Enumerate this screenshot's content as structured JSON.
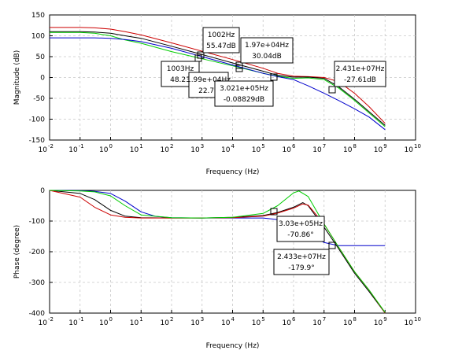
{
  "chart_data": [
    {
      "type": "line",
      "xlabel": "Frequency (Hz)",
      "ylabel": "Magnitude (dB)",
      "xscale": "log",
      "xlim": [
        0.01,
        10000000000
      ],
      "ylim": [
        -150,
        150
      ],
      "xticks": [
        "-2",
        "-1",
        "0",
        "1",
        "2",
        "3",
        "4",
        "5",
        "6",
        "7",
        "8",
        "9",
        "10"
      ],
      "xtick_base": "10",
      "yticks": [
        150,
        100,
        50,
        0,
        -50,
        -100,
        -150
      ],
      "grid": true,
      "series": [
        {
          "color": "#cc0000",
          "x": [
            0.01,
            0.1,
            0.3,
            1,
            3,
            10,
            100,
            1000,
            10000,
            100000,
            300000,
            1000000,
            3000000,
            10000000,
            30000000,
            100000000,
            300000000,
            1000000000
          ],
          "y": [
            120,
            120,
            119,
            116,
            110,
            102,
            83,
            63,
            43,
            22,
            10,
            3,
            2,
            0,
            -10,
            -38,
            -70,
            -110
          ]
        },
        {
          "color": "#000000",
          "x": [
            0.01,
            0.1,
            0.3,
            1,
            3,
            10,
            100,
            1000,
            10000,
            100000,
            300000,
            1000000,
            3000000,
            10000000,
            30000000,
            100000000,
            300000000,
            1000000000
          ],
          "y": [
            110,
            110,
            109,
            106,
            100,
            94,
            75,
            55,
            35,
            15,
            5,
            1,
            1,
            -2,
            -22,
            -52,
            -82,
            -115
          ]
        },
        {
          "color": "#00cc00",
          "x": [
            0.01,
            0.1,
            0.3,
            1,
            3,
            10,
            100,
            1000,
            10000,
            100000,
            300000,
            1000000,
            3000000,
            10000000,
            30000000,
            100000000,
            300000000,
            1000000000
          ],
          "y": [
            108,
            108,
            106,
            100,
            90,
            82,
            62,
            45,
            28,
            10,
            3,
            -2,
            -1,
            -5,
            -25,
            -55,
            -85,
            -118
          ]
        },
        {
          "color": "#0000cc",
          "x": [
            0.01,
            0.1,
            0.3,
            1,
            3,
            10,
            100,
            1000,
            10000,
            100000,
            300000,
            1000000,
            3000000,
            10000000,
            30000000,
            100000000,
            300000000,
            1000000000
          ],
          "y": [
            95,
            95,
            95,
            94,
            91,
            86,
            70,
            50,
            30,
            10,
            2,
            -5,
            -20,
            -38,
            -55,
            -75,
            -95,
            -125
          ]
        }
      ],
      "datatips": [
        {
          "x": 1002,
          "y": 55.47,
          "line1": "1002Hz",
          "line2": "55.47dB"
        },
        {
          "x": 1003,
          "y": 48.23,
          "line1": "1003Hz",
          "line2": "48.23"
        },
        {
          "x": 19700,
          "y": 30.04,
          "line1": "1.97e+04Hz",
          "line2": "30.04dB"
        },
        {
          "x": 19900,
          "y": 22.72,
          "line1": "1.99e+04Hz",
          "line2": "22.72"
        },
        {
          "x": 302100,
          "y": -0.08829,
          "line1": "3.021e+05Hz",
          "line2": "-0.08829dB"
        },
        {
          "x": 24310000,
          "y": -27.61,
          "line1": "2.431e+07Hz",
          "line2": "-27.61dB"
        }
      ]
    },
    {
      "type": "line",
      "xlabel": "Frequency (Hz)",
      "ylabel": "Phase (degree)",
      "xscale": "log",
      "xlim": [
        0.01,
        10000000000
      ],
      "ylim": [
        -400,
        0
      ],
      "xticks": [
        "-2",
        "-1",
        "0",
        "1",
        "2",
        "3",
        "4",
        "5",
        "6",
        "7",
        "8",
        "9",
        "10"
      ],
      "xtick_base": "10",
      "yticks": [
        0,
        -100,
        -200,
        -300,
        -400
      ],
      "grid": true,
      "series": [
        {
          "color": "#0000cc",
          "x": [
            0.01,
            0.1,
            0.3,
            1,
            3,
            10,
            30,
            100,
            1000,
            10000,
            100000,
            300000,
            1000000,
            3000000,
            10000000,
            30000000,
            100000000,
            1000000000
          ],
          "y": [
            0,
            -1,
            -3,
            -10,
            -35,
            -70,
            -85,
            -89,
            -90,
            -90,
            -90,
            -95,
            -110,
            -140,
            -170,
            -180,
            -180,
            -180
          ]
        },
        {
          "color": "#000000",
          "x": [
            0.01,
            0.1,
            0.3,
            1,
            3,
            10,
            100,
            1000,
            10000,
            100000,
            300000,
            1000000,
            2000000,
            3000000,
            10000000,
            30000000,
            100000000,
            300000000,
            1000000000
          ],
          "y": [
            0,
            -10,
            -30,
            -65,
            -84,
            -89,
            -90,
            -90,
            -88,
            -82,
            -72,
            -55,
            -40,
            -50,
            -120,
            -190,
            -270,
            -330,
            -400
          ]
        },
        {
          "color": "#cc0000",
          "x": [
            0.01,
            0.1,
            0.3,
            1,
            3,
            10,
            100,
            1000,
            10000,
            100000,
            300000,
            1000000,
            2000000,
            3000000,
            10000000,
            30000000,
            100000000,
            300000000,
            1000000000
          ],
          "y": [
            0,
            -22,
            -55,
            -80,
            -88,
            -90,
            -90,
            -90,
            -89,
            -84,
            -74,
            -58,
            -44,
            -48,
            -110,
            -185,
            -265,
            -325,
            -400
          ]
        },
        {
          "color": "#00cc00",
          "x": [
            0.01,
            0.1,
            0.3,
            1,
            3,
            10,
            100,
            1000,
            10000,
            100000,
            300000,
            1000000,
            1500000,
            3000000,
            10000000,
            30000000,
            100000000,
            300000000,
            1000000000
          ],
          "y": [
            0,
            -2,
            -5,
            -18,
            -50,
            -80,
            -89,
            -90,
            -88,
            -75,
            -50,
            -8,
            -2,
            -20,
            -110,
            -185,
            -265,
            -325,
            -398
          ]
        }
      ],
      "datatips": [
        {
          "x": 303000,
          "y": -70.86,
          "line1": "3.03e+05Hz",
          "line2": "-70.86°"
        },
        {
          "x": 24330000,
          "y": -179.9,
          "line1": "2.433e+07Hz",
          "line2": "-179.9°"
        }
      ]
    }
  ]
}
